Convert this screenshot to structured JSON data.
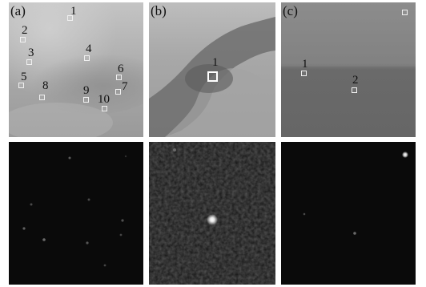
{
  "panels": {
    "a": {
      "tag": "(a)",
      "markers": [
        "1",
        "2",
        "3",
        "4",
        "5",
        "6",
        "7",
        "8",
        "9",
        "10"
      ]
    },
    "b": {
      "tag": "(b)",
      "markers": [
        "1"
      ]
    },
    "c": {
      "tag": "(c)",
      "markers": [
        "1",
        "2"
      ]
    }
  },
  "colors": {
    "border": "#ffffff",
    "dark_bg": "#0a0a0a",
    "box": "#f0f0f0"
  }
}
